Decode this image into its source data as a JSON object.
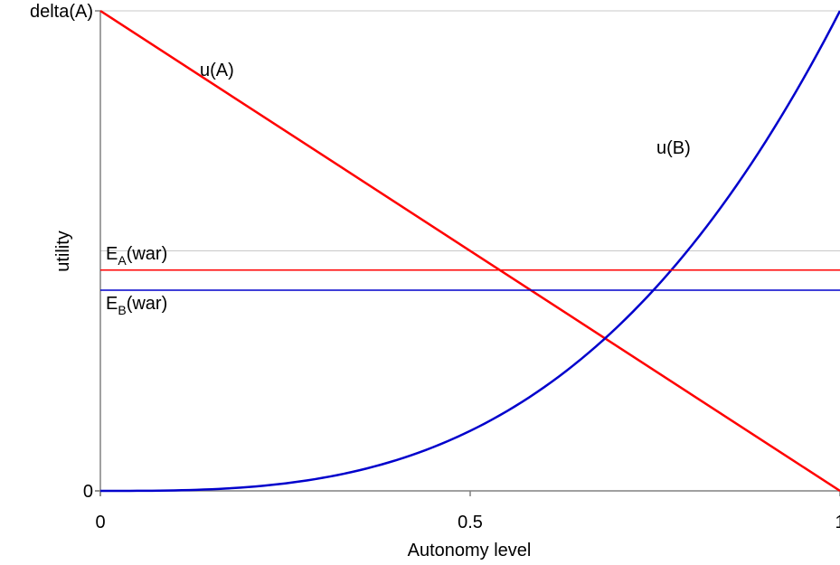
{
  "chart_data": {
    "type": "line",
    "title": "",
    "xlabel": "Autonomy level",
    "ylabel": "utility",
    "xlim": [
      0,
      1
    ],
    "ylim": [
      0,
      1
    ],
    "x_ticks": [
      {
        "value": 0,
        "label": "0"
      },
      {
        "value": 0.5,
        "label": "0.5"
      },
      {
        "value": 1,
        "label": "1"
      }
    ],
    "y_ticks": [
      {
        "value": 0,
        "label": "0"
      },
      {
        "value": 1,
        "label": "delta(A)"
      }
    ],
    "gridlines_y": [
      0.5
    ],
    "legend": "none",
    "series": [
      {
        "name": "u(A)",
        "kind": "curve",
        "color": "#ff0000",
        "x": [
          0,
          1
        ],
        "y": [
          1,
          0
        ],
        "label": "u(A)"
      },
      {
        "name": "u(B)",
        "kind": "curve",
        "color": "#0000cc",
        "exponent": 3,
        "x": [
          0,
          0.1,
          0.2,
          0.3,
          0.4,
          0.5,
          0.6,
          0.7,
          0.8,
          0.9,
          1
        ],
        "y": [
          0,
          0.001,
          0.008,
          0.027,
          0.064,
          0.125,
          0.216,
          0.343,
          0.512,
          0.729,
          1
        ],
        "label": "u(B)"
      },
      {
        "name": "E_A(war)",
        "kind": "hline",
        "color": "#ff0000",
        "y": 0.46,
        "label_main": "E",
        "label_sub": "A",
        "label_rest": "(war)"
      },
      {
        "name": "E_B(war)",
        "kind": "hline",
        "color": "#0000cc",
        "y": 0.418,
        "label_main": "E",
        "label_sub": "B",
        "label_rest": "(war)"
      }
    ]
  }
}
